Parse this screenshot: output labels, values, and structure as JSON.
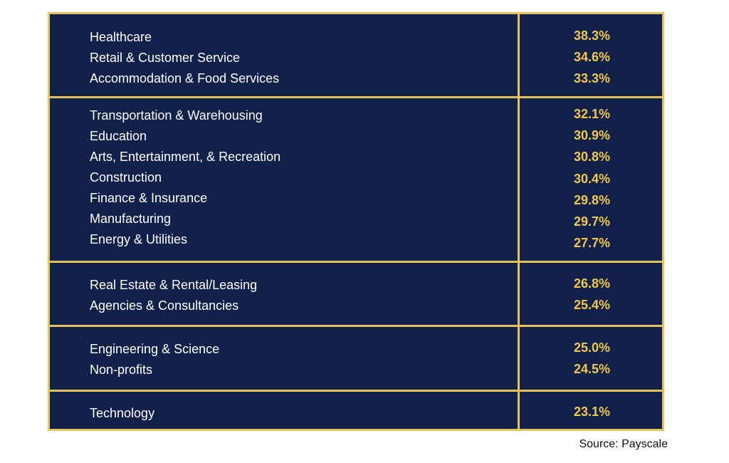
{
  "chart_data": {
    "type": "table",
    "groups": [
      {
        "rows": [
          {
            "label": "Healthcare",
            "value": "38.3%"
          },
          {
            "label": "Retail & Customer Service",
            "value": "34.6%"
          },
          {
            "label": "Accommodation & Food Services",
            "value": "33.3%"
          }
        ]
      },
      {
        "rows": [
          {
            "label": "Transportation & Warehousing",
            "value": "32.1%"
          },
          {
            "label": "Education",
            "value": "30.9%"
          },
          {
            "label": "Arts, Entertainment, & Recreation",
            "value": "30.8%"
          },
          {
            "label": "Construction",
            "value": "30.4%"
          },
          {
            "label": "Finance & Insurance",
            "value": "29.8%"
          },
          {
            "label": "Manufacturing",
            "value": "29.7%"
          },
          {
            "label": "Energy & Utilities",
            "value": "27.7%"
          }
        ]
      },
      {
        "rows": [
          {
            "label": "Real Estate & Rental/Leasing",
            "value": "26.8%"
          },
          {
            "label": "Agencies & Consultancies",
            "value": "25.4%"
          }
        ]
      },
      {
        "rows": [
          {
            "label": "Engineering & Science",
            "value": "25.0%"
          },
          {
            "label": "Non-profits",
            "value": "24.5%"
          }
        ]
      },
      {
        "rows": [
          {
            "label": "Technology",
            "value": "23.1%"
          }
        ]
      }
    ]
  },
  "source": "Source: Payscale",
  "colors": {
    "background": "#11214a",
    "border": "#e6c25a",
    "label_text": "#ffffff",
    "value_text": "#f0c74a"
  }
}
